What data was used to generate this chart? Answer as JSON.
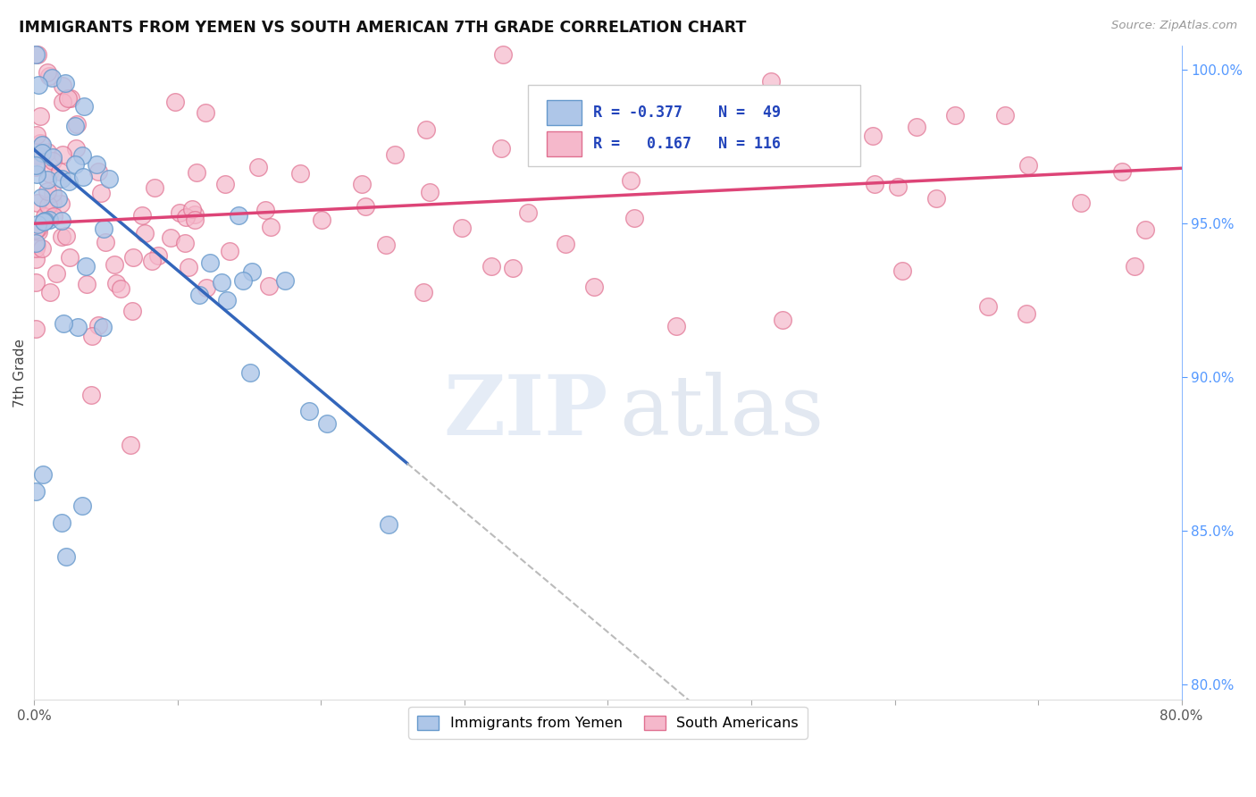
{
  "title": "IMMIGRANTS FROM YEMEN VS SOUTH AMERICAN 7TH GRADE CORRELATION CHART",
  "source": "Source: ZipAtlas.com",
  "ylabel": "7th Grade",
  "watermark_zip": "ZIP",
  "watermark_atlas": "atlas",
  "legend_label1": "Immigrants from Yemen",
  "legend_label2": "South Americans",
  "r1": -0.377,
  "n1": 49,
  "r2": 0.167,
  "n2": 116,
  "color1": "#aec6e8",
  "color2": "#f5b8cb",
  "edge_color1": "#6699cc",
  "edge_color2": "#e07090",
  "line_color1": "#3366bb",
  "line_color2": "#dd4477",
  "dash_color": "#bbbbbb",
  "xmin": 0.0,
  "xmax": 0.8,
  "ymin": 0.795,
  "ymax": 1.008,
  "yticks": [
    0.8,
    0.85,
    0.9,
    0.95,
    1.0
  ],
  "ytick_labels": [
    "80.0%",
    "85.0%",
    "90.0%",
    "95.0%",
    "100.0%"
  ],
  "xticks": [
    0.0,
    0.1,
    0.2,
    0.3,
    0.4,
    0.5,
    0.6,
    0.7,
    0.8
  ],
  "xtick_labels": [
    "0.0%",
    "",
    "",
    "",
    "",
    "",
    "",
    "",
    "80.0%"
  ],
  "blue_line_x0": 0.0,
  "blue_line_y0": 0.974,
  "blue_line_x1": 0.26,
  "blue_line_y1": 0.872,
  "blue_line_solid_end": 0.26,
  "blue_line_dash_end": 0.6,
  "pink_line_x0": 0.0,
  "pink_line_y0": 0.95,
  "pink_line_x1": 0.8,
  "pink_line_y1": 0.968
}
